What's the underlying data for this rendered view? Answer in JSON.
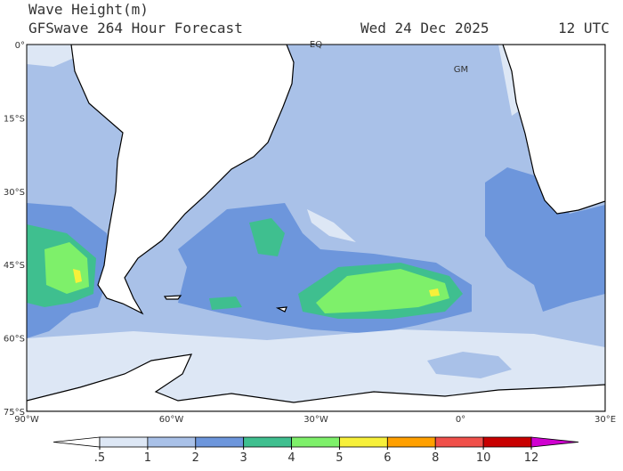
{
  "header": {
    "title": "Wave Height(m)",
    "subtitle": "GFSwave 264 Hour Forecast",
    "date": "Wed 24 Dec 2025",
    "time": "12 UTC"
  },
  "map": {
    "lat_labels": [
      "0°",
      "15°S",
      "30°S",
      "45°S",
      "60°S",
      "75°S"
    ],
    "lon_labels": [
      "90°W",
      "60°W",
      "30°W",
      "0°",
      "30°E"
    ],
    "markers": [
      "EQ",
      "GM"
    ]
  },
  "colorbar": {
    "ticks": [
      {
        "value": 0.5,
        "label": ".5"
      },
      1,
      2,
      3,
      4,
      5,
      6,
      8,
      10,
      12
    ],
    "colors": [
      "#ffffff",
      "#dde7f5",
      "#a9c1e8",
      "#6d96dc",
      "#3fbf8f",
      "#7ef06a",
      "#f7f03a",
      "#ffa000",
      "#f0504a",
      "#c80000",
      "#d000d0"
    ]
  }
}
